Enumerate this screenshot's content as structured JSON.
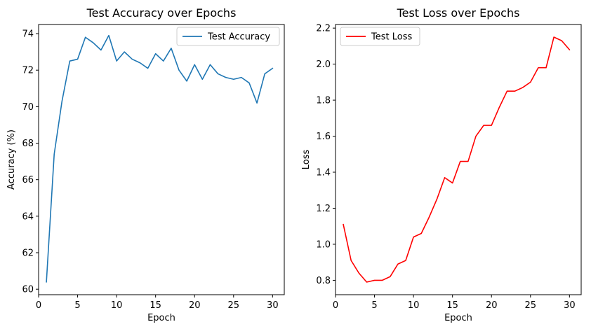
{
  "chart_data": [
    {
      "type": "line",
      "title": "Test Accuracy over Epochs",
      "xlabel": "Epoch",
      "ylabel": "Accuracy (%)",
      "xlim": [
        0,
        31.5
      ],
      "ylim": [
        59.7,
        74.5
      ],
      "xticks": [
        0,
        5,
        10,
        15,
        20,
        25,
        30
      ],
      "yticks": [
        60,
        62,
        64,
        66,
        68,
        70,
        72,
        74
      ],
      "grid": false,
      "legend": "upper right",
      "series": [
        {
          "name": "Test Accuracy",
          "color": "#1f77b4",
          "x": [
            1,
            2,
            3,
            4,
            5,
            6,
            7,
            8,
            9,
            10,
            11,
            12,
            13,
            14,
            15,
            16,
            17,
            18,
            19,
            20,
            21,
            22,
            23,
            24,
            25,
            26,
            27,
            28,
            29,
            30
          ],
          "y": [
            60.4,
            67.4,
            70.3,
            72.5,
            72.6,
            73.8,
            73.5,
            73.1,
            73.9,
            72.5,
            73.0,
            72.6,
            72.4,
            72.1,
            72.9,
            72.5,
            73.2,
            72.0,
            71.4,
            72.3,
            71.5,
            72.3,
            71.8,
            71.6,
            71.5,
            71.6,
            71.3,
            70.2,
            71.8,
            72.1
          ]
        }
      ]
    },
    {
      "type": "line",
      "title": "Test Loss over Epochs",
      "xlabel": "Epoch",
      "ylabel": "Loss",
      "xlim": [
        0,
        31.5
      ],
      "ylim": [
        0.72,
        2.22
      ],
      "xticks": [
        0,
        5,
        10,
        15,
        20,
        25,
        30
      ],
      "yticks": [
        0.8,
        1.0,
        1.2,
        1.4,
        1.6,
        1.8,
        2.0,
        2.2
      ],
      "grid": false,
      "legend": "upper left",
      "series": [
        {
          "name": "Test Loss",
          "color": "#ff0000",
          "x": [
            1,
            2,
            3,
            4,
            5,
            6,
            7,
            8,
            9,
            10,
            11,
            12,
            13,
            14,
            15,
            16,
            17,
            18,
            19,
            20,
            21,
            22,
            23,
            24,
            25,
            26,
            27,
            28,
            29,
            30
          ],
          "y": [
            1.11,
            0.91,
            0.84,
            0.79,
            0.8,
            0.8,
            0.82,
            0.89,
            0.91,
            1.04,
            1.06,
            1.15,
            1.25,
            1.37,
            1.34,
            1.46,
            1.46,
            1.6,
            1.66,
            1.66,
            1.76,
            1.85,
            1.85,
            1.87,
            1.9,
            1.98,
            1.98,
            2.15,
            2.13,
            2.08
          ]
        }
      ]
    }
  ]
}
